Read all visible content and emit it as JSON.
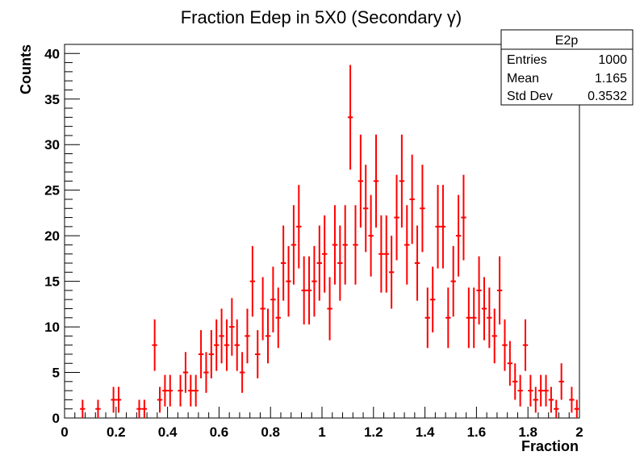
{
  "chart_data": {
    "type": "histogram",
    "title": "Fraction Edep in 5X0 (Secondary γ)",
    "xlabel": "Fraction",
    "ylabel": "Counts",
    "xlim": [
      0,
      2
    ],
    "ylim": [
      0,
      41
    ],
    "x_ticks": [
      "0",
      "0.2",
      "0.4",
      "0.6",
      "0.8",
      "1",
      "1.2",
      "1.4",
      "1.6",
      "1.8",
      "2"
    ],
    "y_ticks": [
      "0",
      "5",
      "10",
      "15",
      "20",
      "25",
      "30",
      "35",
      "40"
    ],
    "bin_width": 0.02,
    "series_color": "#ff0000",
    "stats_box": {
      "name": "E2p",
      "rows": [
        {
          "label": "Entries",
          "value": "1000"
        },
        {
          "label": "Mean",
          "value": "1.165"
        },
        {
          "label": "Std Dev",
          "value": "0.3532"
        }
      ]
    },
    "bins": [
      {
        "x": 0.07,
        "y": 1
      },
      {
        "x": 0.13,
        "y": 1
      },
      {
        "x": 0.19,
        "y": 2
      },
      {
        "x": 0.21,
        "y": 2
      },
      {
        "x": 0.29,
        "y": 1
      },
      {
        "x": 0.31,
        "y": 1
      },
      {
        "x": 0.35,
        "y": 8
      },
      {
        "x": 0.37,
        "y": 2
      },
      {
        "x": 0.39,
        "y": 3
      },
      {
        "x": 0.41,
        "y": 3
      },
      {
        "x": 0.45,
        "y": 3
      },
      {
        "x": 0.47,
        "y": 5
      },
      {
        "x": 0.49,
        "y": 3
      },
      {
        "x": 0.51,
        "y": 3
      },
      {
        "x": 0.53,
        "y": 7
      },
      {
        "x": 0.55,
        "y": 5
      },
      {
        "x": 0.57,
        "y": 7
      },
      {
        "x": 0.59,
        "y": 8
      },
      {
        "x": 0.61,
        "y": 9
      },
      {
        "x": 0.63,
        "y": 8
      },
      {
        "x": 0.65,
        "y": 10
      },
      {
        "x": 0.67,
        "y": 8
      },
      {
        "x": 0.69,
        "y": 5
      },
      {
        "x": 0.71,
        "y": 9
      },
      {
        "x": 0.73,
        "y": 15
      },
      {
        "x": 0.75,
        "y": 7
      },
      {
        "x": 0.77,
        "y": 12
      },
      {
        "x": 0.79,
        "y": 9
      },
      {
        "x": 0.81,
        "y": 13
      },
      {
        "x": 0.83,
        "y": 11
      },
      {
        "x": 0.85,
        "y": 17
      },
      {
        "x": 0.87,
        "y": 15
      },
      {
        "x": 0.89,
        "y": 19
      },
      {
        "x": 0.91,
        "y": 21
      },
      {
        "x": 0.93,
        "y": 14
      },
      {
        "x": 0.95,
        "y": 14
      },
      {
        "x": 0.97,
        "y": 15
      },
      {
        "x": 0.99,
        "y": 17
      },
      {
        "x": 1.01,
        "y": 18
      },
      {
        "x": 1.03,
        "y": 12
      },
      {
        "x": 1.05,
        "y": 19
      },
      {
        "x": 1.07,
        "y": 17
      },
      {
        "x": 1.09,
        "y": 19
      },
      {
        "x": 1.11,
        "y": 33
      },
      {
        "x": 1.13,
        "y": 19
      },
      {
        "x": 1.15,
        "y": 26
      },
      {
        "x": 1.17,
        "y": 23
      },
      {
        "x": 1.19,
        "y": 20
      },
      {
        "x": 1.21,
        "y": 26
      },
      {
        "x": 1.23,
        "y": 18
      },
      {
        "x": 1.25,
        "y": 18
      },
      {
        "x": 1.27,
        "y": 16
      },
      {
        "x": 1.29,
        "y": 22
      },
      {
        "x": 1.31,
        "y": 26
      },
      {
        "x": 1.33,
        "y": 19
      },
      {
        "x": 1.35,
        "y": 24
      },
      {
        "x": 1.37,
        "y": 17
      },
      {
        "x": 1.39,
        "y": 23
      },
      {
        "x": 1.41,
        "y": 11
      },
      {
        "x": 1.43,
        "y": 13
      },
      {
        "x": 1.45,
        "y": 21
      },
      {
        "x": 1.47,
        "y": 21
      },
      {
        "x": 1.49,
        "y": 11
      },
      {
        "x": 1.51,
        "y": 15
      },
      {
        "x": 1.53,
        "y": 20
      },
      {
        "x": 1.55,
        "y": 22
      },
      {
        "x": 1.57,
        "y": 11
      },
      {
        "x": 1.59,
        "y": 11
      },
      {
        "x": 1.61,
        "y": 14
      },
      {
        "x": 1.63,
        "y": 12
      },
      {
        "x": 1.65,
        "y": 11
      },
      {
        "x": 1.67,
        "y": 9
      },
      {
        "x": 1.69,
        "y": 14
      },
      {
        "x": 1.71,
        "y": 8
      },
      {
        "x": 1.73,
        "y": 6
      },
      {
        "x": 1.75,
        "y": 4
      },
      {
        "x": 1.77,
        "y": 3
      },
      {
        "x": 1.79,
        "y": 8
      },
      {
        "x": 1.81,
        "y": 3
      },
      {
        "x": 1.83,
        "y": 2
      },
      {
        "x": 1.85,
        "y": 3
      },
      {
        "x": 1.87,
        "y": 3
      },
      {
        "x": 1.89,
        "y": 2
      },
      {
        "x": 1.91,
        "y": 1
      },
      {
        "x": 1.93,
        "y": 4
      },
      {
        "x": 1.97,
        "y": 2
      },
      {
        "x": 1.99,
        "y": 1
      }
    ]
  }
}
